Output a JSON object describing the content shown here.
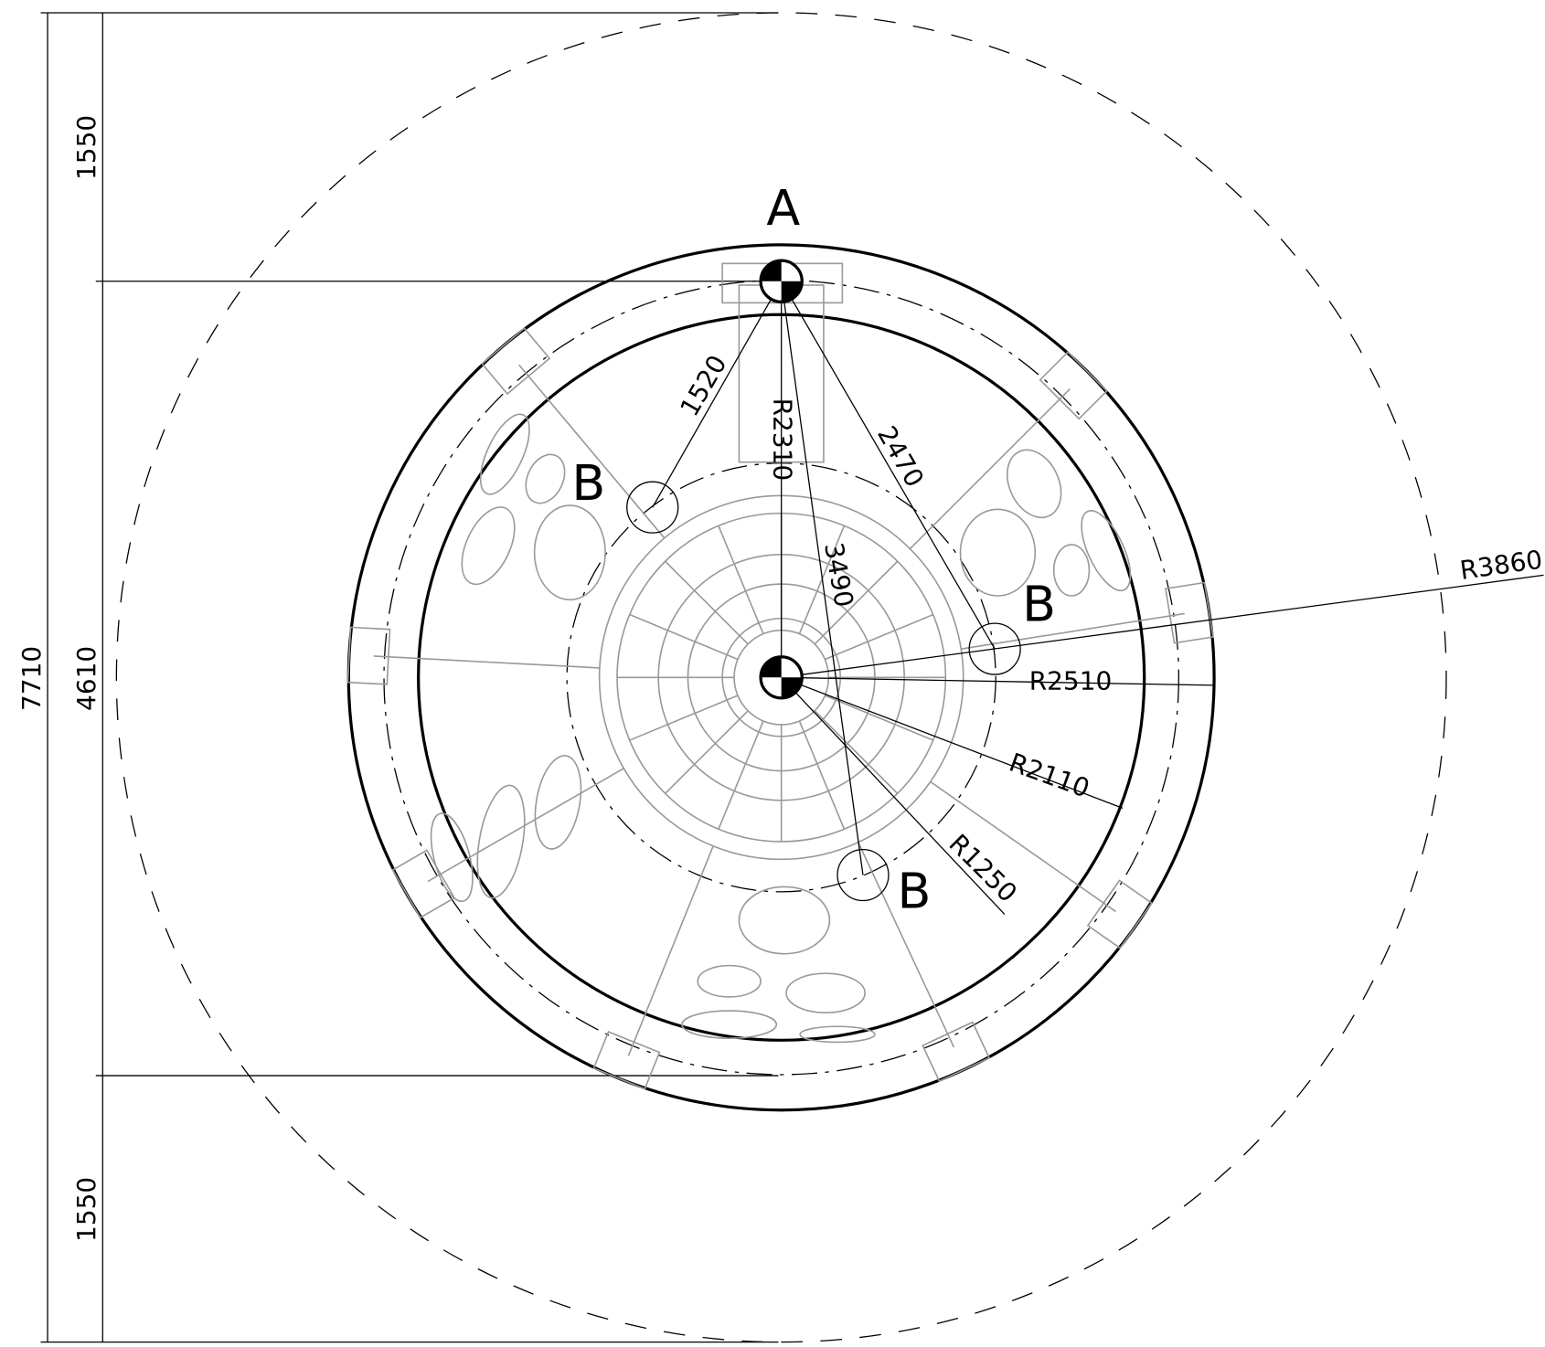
{
  "dimensions": {
    "top": 1550,
    "middle": 4610,
    "overall": 7710,
    "bottom": 1550
  },
  "points": {
    "a": "A",
    "b": [
      "B",
      "B",
      "B"
    ]
  },
  "distances": {
    "a_b1": 1520,
    "a_b2": 2470,
    "a_b3": 3490
  },
  "radii": {
    "r2310": "R2310",
    "r3860": "R3860",
    "r2510": "R2510",
    "r2110": "R2110",
    "r1250": "R1250"
  }
}
